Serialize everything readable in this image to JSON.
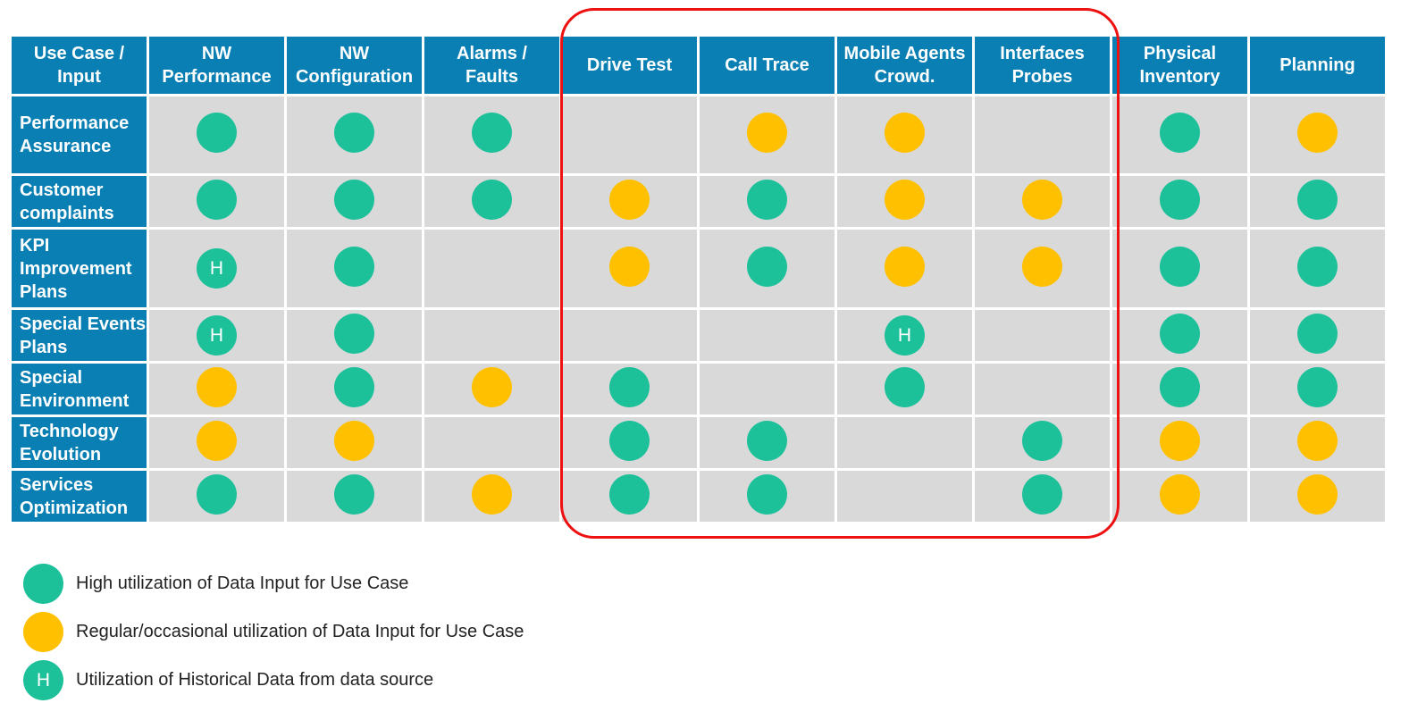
{
  "colors": {
    "header": "#0a7fb3",
    "cell": "#d9d9d9",
    "high": "#1cc19a",
    "regular": "#ffc000",
    "highlight": "#ee1111"
  },
  "table": {
    "corner": "Use Case /\nInput",
    "columns": [
      "NW\nPerformance",
      "NW\nConfiguration",
      "Alarms /\nFaults",
      "Drive Test",
      "Call Trace",
      "Mobile Agents\nCrowd.",
      "Interfaces\nProbes",
      "Physical\nInventory",
      "Planning"
    ],
    "rows": [
      {
        "label": "Performance\nAssurance",
        "cells": [
          "high",
          "high",
          "high",
          "",
          "regular",
          "regular",
          "",
          "high",
          "regular"
        ]
      },
      {
        "label": "Customer\ncomplaints",
        "cells": [
          "high",
          "high",
          "high",
          "regular",
          "high",
          "regular",
          "regular",
          "high",
          "high"
        ]
      },
      {
        "label": "KPI\nImprovement\nPlans",
        "cells": [
          "historical",
          "high",
          "",
          "regular",
          "high",
          "regular",
          "regular",
          "high",
          "high"
        ]
      },
      {
        "label": "Special Events\nPlans",
        "cells": [
          "historical",
          "high",
          "",
          "",
          "",
          "historical",
          "",
          "high",
          "high"
        ]
      },
      {
        "label": "Special\nEnvironment",
        "cells": [
          "regular",
          "high",
          "regular",
          "high",
          "",
          "high",
          "",
          "high",
          "high"
        ]
      },
      {
        "label": "Technology\nEvolution",
        "cells": [
          "regular",
          "regular",
          "",
          "high",
          "high",
          "",
          "high",
          "regular",
          "regular"
        ]
      },
      {
        "label": "Services\nOptimization",
        "cells": [
          "high",
          "high",
          "regular",
          "high",
          "high",
          "",
          "high",
          "regular",
          "regular"
        ]
      }
    ]
  },
  "historical_mark": "H",
  "legend": [
    {
      "type": "high",
      "mark": "",
      "label": "High utilization of Data Input for Use Case"
    },
    {
      "type": "regular",
      "mark": "",
      "label": "Regular/occasional utilization of Data Input for Use Case"
    },
    {
      "type": "historical",
      "mark": "H",
      "label": "Utilization of Historical Data from data source"
    }
  ]
}
